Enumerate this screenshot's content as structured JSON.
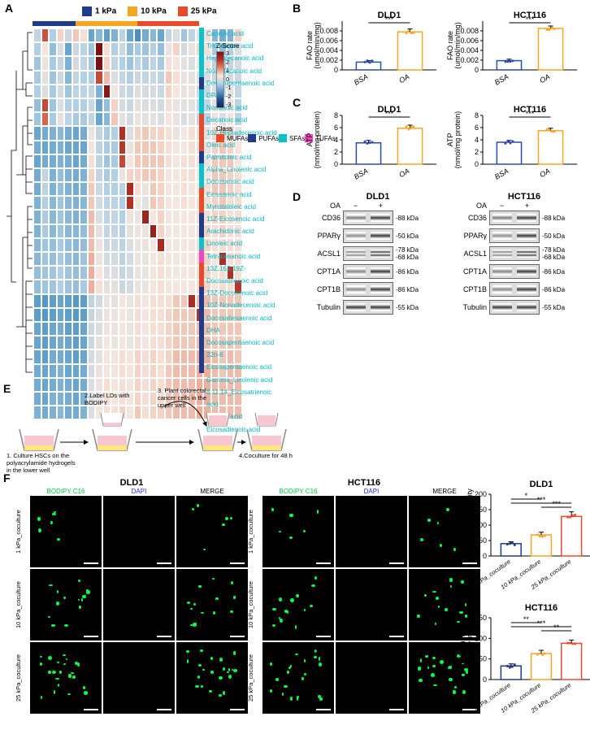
{
  "colors": {
    "kpa1": "#1f3b8b",
    "kpa10": "#f6a623",
    "kpa25": "#e84b2c",
    "mufa": "#e84b2c",
    "pufa": "#1f3b8b",
    "sfa": "#05c4cc",
    "tufa": "#f244c0",
    "bsa_bar": "#ffffff",
    "bsa_stroke": "#2b4db0",
    "oa_bar": "#ffffff",
    "oa_stroke": "#f6a623",
    "bodipy": "#00c83c",
    "dapi": "#1a2cff"
  },
  "stiffness_legend": [
    {
      "label": "1 kPa",
      "color": "#1f3b8b"
    },
    {
      "label": "10 kPa",
      "color": "#f6a623"
    },
    {
      "label": "25 kPa",
      "color": "#e84b2c"
    }
  ],
  "heatmap": {
    "n_cols": 27,
    "col_groups": [
      {
        "n": 7,
        "color": "#1f3b8b"
      },
      {
        "n": 10,
        "color": "#f6a623"
      },
      {
        "n": 10,
        "color": "#e84b2c"
      }
    ],
    "row_labels": [
      "Caprylic acid",
      "Tricosanoic acid",
      "Heptadecanoic acid",
      "Nonadecanoic acid",
      "Docosapentaenoic acid DPA",
      "Nonanoic acid",
      "Decanoic acid",
      "10Z-Heptadecenoic acid",
      "Oleic acid",
      "Palmitoleic acid",
      "Alpha_Linolenic acid",
      "Docosanoic acid",
      "Eicosanoic acid",
      "Myristaloleic acid",
      "11Z-Eicosenoic acid",
      "Arachidonic acid",
      "Linoleic acid",
      "Tetracosanoic acid",
      "13Z,16Z,19Z-Docosatrienoic acid",
      "13Z-Docosenoic acid",
      "10Z-Nonadecenoic acid",
      "Docosahexaenoic acid DHA",
      "Docosapentaenoic acid 22n-6",
      "Eicosapentaenoic acid",
      "Gamma_Linolenic acid",
      "8,11,14_Eicosatrienoic acid",
      "Adrenic acid",
      "Eicosadienoic acid"
    ],
    "row_class": [
      "SFAs",
      "SFAs",
      "SFAs",
      "SFAs",
      "PUFAs",
      "SFAs",
      "SFAs",
      "MUFAs",
      "MUFAs",
      "MUFAs",
      "PUFAs",
      "SFAs",
      "SFAs",
      "MUFAs",
      "MUFAs",
      "PUFAs",
      "PUFAs",
      "SFAs",
      "TUFAs",
      "MUFAs",
      "MUFAs",
      "PUFAs",
      "PUFAs",
      "PUFAs",
      "PUFAs",
      "PUFAs",
      "PUFAs",
      "PUFAs"
    ],
    "class_colors": {
      "MUFAs": "#e84b2c",
      "PUFAs": "#1f3b8b",
      "SFAs": "#05c4cc",
      "TUFAs": "#f244c0"
    },
    "zscore_range": [
      -3,
      -2,
      -1,
      0,
      1,
      2,
      3
    ],
    "z_palette": [
      "#0a2a5e",
      "#1f4e8c",
      "#5799c7",
      "#b0cfe4",
      "#f6e7de",
      "#e68266",
      "#b33426",
      "#7b1113"
    ],
    "values": [
      [
        -0.2,
        1.8,
        -0.4,
        0.6,
        -0.1,
        0.7,
        0.5,
        -1.1,
        -0.8,
        -1.2,
        -0.9,
        -0.3,
        -1.1,
        -1.4,
        -1.0,
        -0.8,
        -1.1,
        -0.2,
        0.1,
        -0.6,
        -0.3,
        0.3,
        0.5,
        -0.8,
        -1.0,
        -0.9,
        0.6
      ],
      [
        -0.4,
        0.4,
        -0.7,
        0.1,
        -1.1,
        -0.1,
        -0.3,
        -0.6,
        3.1,
        0.5,
        -0.4,
        -0.1,
        -0.7,
        -0.5,
        -0.6,
        -0.4,
        -0.7,
        0.3,
        0.6,
        0.0,
        0.3,
        0.6,
        0.5,
        -0.5,
        -0.7,
        -0.4,
        0.1
      ],
      [
        -0.6,
        0.3,
        -0.5,
        -0.2,
        -0.9,
        0.0,
        -0.2,
        -0.5,
        3.0,
        0.6,
        -0.2,
        -0.4,
        -0.6,
        -0.3,
        -0.5,
        -0.3,
        -0.5,
        0.5,
        0.4,
        0.2,
        0.1,
        0.4,
        0.3,
        -0.3,
        -0.5,
        -0.2,
        0.0
      ],
      [
        -0.5,
        0.2,
        -0.6,
        -0.1,
        -0.8,
        -0.2,
        -0.4,
        -0.4,
        1.9,
        0.8,
        0.1,
        -0.2,
        -0.4,
        -0.1,
        -0.2,
        -0.1,
        -0.3,
        0.7,
        0.5,
        0.3,
        0.2,
        0.2,
        0.1,
        -0.1,
        -0.3,
        0.0,
        -0.1
      ],
      [
        -0.4,
        0.1,
        -0.5,
        0.0,
        -0.6,
        -0.3,
        -0.3,
        -0.2,
        -0.9,
        2.8,
        0.4,
        -0.1,
        -0.2,
        0.1,
        0.0,
        0.0,
        -0.1,
        0.6,
        0.4,
        0.3,
        0.3,
        0.0,
        -0.1,
        0.1,
        -0.1,
        0.2,
        -0.2
      ],
      [
        -0.7,
        1.9,
        -0.6,
        0.1,
        -0.4,
        -0.4,
        -0.4,
        -0.1,
        -1.1,
        -0.7,
        0.6,
        0.0,
        -0.1,
        0.2,
        0.1,
        0.1,
        0.0,
        0.5,
        0.3,
        0.2,
        0.2,
        -0.1,
        -0.2,
        0.2,
        0.0,
        0.3,
        -0.3
      ],
      [
        -0.6,
        1.6,
        -0.5,
        0.2,
        -0.3,
        -0.5,
        -0.5,
        -0.2,
        -1.1,
        -0.8,
        0.7,
        0.2,
        0.0,
        0.3,
        0.2,
        0.2,
        0.1,
        0.4,
        0.3,
        0.1,
        0.2,
        -0.2,
        -0.3,
        0.3,
        0.1,
        0.4,
        -0.3
      ],
      [
        -1.1,
        -1.0,
        -0.9,
        -0.8,
        -1.0,
        -1.1,
        -1.0,
        0.3,
        -0.2,
        -0.5,
        -0.4,
        2.2,
        0.1,
        0.6,
        0.7,
        0.6,
        0.6,
        0.5,
        0.3,
        0.4,
        0.5,
        0.2,
        0.2,
        0.6,
        0.7,
        0.6,
        0.3
      ],
      [
        -1.0,
        -1.1,
        -1.0,
        -0.9,
        -1.1,
        -1.1,
        -1.1,
        0.4,
        -0.3,
        -0.5,
        -0.5,
        2.1,
        0.3,
        0.7,
        0.7,
        0.7,
        0.6,
        0.5,
        0.4,
        0.4,
        0.5,
        0.3,
        0.3,
        0.6,
        0.7,
        0.6,
        0.4
      ],
      [
        -1.1,
        -1.0,
        -1.0,
        -0.9,
        -1.0,
        -1.1,
        -1.0,
        0.5,
        -0.3,
        -0.6,
        -0.5,
        1.9,
        0.4,
        0.7,
        0.7,
        0.7,
        0.7,
        0.5,
        0.4,
        0.5,
        0.5,
        0.3,
        0.3,
        0.7,
        0.7,
        0.7,
        0.4
      ],
      [
        -1.0,
        -0.2,
        -0.9,
        -0.7,
        -0.9,
        -1.0,
        -0.9,
        0.6,
        -0.2,
        -0.5,
        -0.4,
        0.3,
        0.6,
        0.6,
        0.7,
        0.7,
        0.6,
        0.4,
        0.4,
        0.5,
        0.5,
        0.4,
        0.4,
        0.7,
        0.7,
        0.6,
        0.5
      ],
      [
        -1.0,
        -0.3,
        -0.9,
        -0.7,
        -0.9,
        -1.0,
        -0.9,
        0.7,
        -0.1,
        -0.4,
        -0.4,
        -0.3,
        2.3,
        0.5,
        0.3,
        0.7,
        0.6,
        0.4,
        0.4,
        0.5,
        0.4,
        0.4,
        0.5,
        0.7,
        0.7,
        0.6,
        0.5
      ],
      [
        -0.9,
        -0.4,
        -0.8,
        -0.6,
        -0.8,
        -0.9,
        -0.8,
        0.7,
        0.0,
        -0.3,
        -0.3,
        -0.4,
        2.2,
        0.4,
        0.2,
        0.7,
        0.6,
        0.4,
        0.4,
        0.5,
        0.4,
        0.5,
        0.5,
        0.6,
        0.7,
        0.5,
        0.5
      ],
      [
        -0.9,
        -0.5,
        -0.8,
        -0.6,
        -0.8,
        -0.9,
        -0.8,
        0.8,
        0.1,
        -0.3,
        -0.2,
        -0.4,
        0.3,
        0.3,
        2.5,
        0.4,
        0.6,
        0.4,
        0.4,
        0.4,
        0.4,
        0.5,
        0.5,
        0.6,
        0.6,
        0.5,
        0.5
      ],
      [
        -0.9,
        -0.5,
        -0.8,
        -0.6,
        -0.8,
        -0.8,
        -0.7,
        0.8,
        0.2,
        -0.2,
        -0.2,
        -0.4,
        0.2,
        0.3,
        0.3,
        2.6,
        0.6,
        0.4,
        0.4,
        0.4,
        0.4,
        0.5,
        0.6,
        0.5,
        0.6,
        0.5,
        0.5
      ],
      [
        -0.8,
        -0.6,
        -0.7,
        -0.5,
        -0.7,
        -0.8,
        -0.7,
        0.8,
        0.3,
        -0.1,
        -0.1,
        -0.3,
        0.1,
        0.3,
        0.3,
        0.4,
        2.4,
        0.4,
        0.4,
        0.4,
        0.4,
        0.5,
        0.6,
        0.5,
        0.5,
        0.5,
        0.5
      ],
      [
        -0.8,
        -0.6,
        -0.7,
        -0.5,
        -0.7,
        -0.8,
        -0.6,
        0.9,
        0.3,
        0.0,
        0.0,
        -0.3,
        0.0,
        0.3,
        0.3,
        0.4,
        0.5,
        0.4,
        0.4,
        0.4,
        0.4,
        0.5,
        0.6,
        0.4,
        2.3,
        0.5,
        0.5
      ],
      [
        -0.7,
        -0.6,
        -0.6,
        -0.4,
        -0.6,
        -0.7,
        -0.6,
        0.9,
        0.4,
        0.1,
        0.1,
        -0.2,
        0.0,
        0.3,
        0.3,
        0.4,
        0.5,
        0.4,
        0.4,
        0.4,
        0.4,
        0.5,
        0.6,
        0.4,
        0.5,
        2.2,
        0.5
      ],
      [
        -0.7,
        -0.6,
        -0.6,
        -0.4,
        -0.6,
        -0.7,
        -0.5,
        0.9,
        0.5,
        0.2,
        0.2,
        -0.1,
        0.0,
        0.3,
        0.3,
        0.4,
        0.5,
        0.4,
        0.4,
        0.4,
        0.4,
        0.5,
        0.6,
        0.4,
        0.5,
        0.5,
        2.1
      ],
      [
        -1.2,
        -1.3,
        -1.2,
        -1.1,
        -1.2,
        -1.3,
        -1.2,
        -0.3,
        0.0,
        0.3,
        0.2,
        0.4,
        0.3,
        0.5,
        0.4,
        0.5,
        0.5,
        0.5,
        0.7,
        0.7,
        2.3,
        0.8,
        0.8,
        0.7,
        0.7,
        0.7,
        0.7
      ],
      [
        -1.2,
        -1.3,
        -1.2,
        -1.1,
        -1.2,
        -1.3,
        -1.2,
        -0.2,
        0.1,
        0.3,
        0.3,
        0.4,
        0.3,
        0.5,
        0.4,
        0.5,
        0.5,
        0.6,
        0.7,
        0.7,
        0.7,
        2.2,
        0.8,
        0.7,
        0.7,
        0.7,
        0.7
      ],
      [
        -1.1,
        -1.2,
        -1.1,
        -1.0,
        -1.2,
        -1.2,
        -1.1,
        -0.1,
        0.1,
        0.3,
        0.3,
        0.4,
        0.3,
        0.5,
        0.4,
        0.5,
        0.5,
        0.6,
        0.7,
        0.7,
        0.7,
        0.8,
        0.8,
        0.7,
        0.7,
        0.7,
        0.7
      ],
      [
        -1.1,
        -1.2,
        -1.1,
        -1.0,
        -1.1,
        -1.2,
        -1.1,
        -0.1,
        0.2,
        0.4,
        0.3,
        0.4,
        0.3,
        0.5,
        0.4,
        0.5,
        0.5,
        0.6,
        0.7,
        0.7,
        0.7,
        0.8,
        0.8,
        0.7,
        0.7,
        0.7,
        0.7
      ],
      [
        -1.1,
        -1.2,
        -1.0,
        -1.0,
        -1.1,
        -1.2,
        -1.1,
        0.0,
        0.2,
        0.4,
        0.4,
        0.5,
        0.4,
        0.6,
        0.5,
        0.6,
        0.5,
        0.6,
        0.8,
        0.8,
        0.8,
        0.9,
        0.9,
        0.8,
        0.7,
        0.8,
        0.7
      ],
      [
        -1.0,
        -1.1,
        -1.0,
        -0.9,
        -1.1,
        -1.1,
        -1.0,
        0.0,
        0.3,
        0.4,
        0.4,
        0.5,
        0.4,
        0.6,
        0.5,
        0.6,
        0.5,
        0.7,
        0.8,
        0.8,
        0.8,
        0.9,
        0.9,
        0.8,
        0.7,
        0.8,
        0.8
      ],
      [
        -1.0,
        -1.1,
        -1.0,
        -0.9,
        -1.0,
        -1.1,
        -1.0,
        0.1,
        0.3,
        0.5,
        0.4,
        0.5,
        0.4,
        0.6,
        0.5,
        0.6,
        0.5,
        0.7,
        0.8,
        0.8,
        0.8,
        0.9,
        0.9,
        0.8,
        0.8,
        0.8,
        0.8
      ],
      [
        -1.0,
        -1.1,
        -0.9,
        -0.9,
        -1.0,
        -1.1,
        -0.9,
        0.1,
        0.3,
        0.5,
        0.4,
        0.5,
        0.4,
        0.6,
        0.5,
        0.6,
        0.5,
        0.7,
        0.8,
        0.8,
        0.8,
        0.9,
        0.9,
        0.8,
        0.8,
        0.8,
        0.8
      ],
      [
        -0.9,
        -1.0,
        -0.9,
        -0.8,
        -1.0,
        -1.0,
        -0.9,
        0.1,
        0.4,
        0.5,
        0.5,
        0.6,
        0.4,
        0.7,
        0.5,
        0.6,
        0.6,
        0.7,
        0.8,
        0.8,
        0.8,
        0.9,
        0.9,
        0.8,
        0.8,
        0.8,
        0.8
      ]
    ]
  },
  "panel_b": {
    "title_left": "DLD1",
    "title_right": "HCT116",
    "ylab": "FAO rate\n(umol/min/mg)",
    "ymax": 0.01,
    "yticks": [
      0,
      0.002,
      0.004,
      0.006,
      0.008
    ],
    "groups": [
      "BSA",
      "OA"
    ],
    "dld1": {
      "bsa": 0.0016,
      "oa": 0.0078,
      "bsa_err": 0.0003,
      "oa_err": 0.0006,
      "sig": "***"
    },
    "hct": {
      "bsa": 0.0019,
      "oa": 0.0085,
      "bsa_err": 0.0003,
      "oa_err": 0.0005,
      "sig": "***"
    }
  },
  "panel_c": {
    "title_left": "DLD1",
    "title_right": "HCT116",
    "ylab": "ATP\n(nmol/mg protein)",
    "ymax": 8,
    "yticks": [
      0,
      2,
      4,
      6,
      8
    ],
    "groups": [
      "BSA",
      "OA"
    ],
    "dld1": {
      "bsa": 3.5,
      "oa": 5.9,
      "bsa_err": 0.4,
      "oa_err": 0.5,
      "sig": "***"
    },
    "hct": {
      "bsa": 3.6,
      "oa": 5.5,
      "bsa_err": 0.3,
      "oa_err": 0.4,
      "sig": "***"
    }
  },
  "panel_d": {
    "label": "D",
    "cells": [
      "DLD1",
      "HCT116"
    ],
    "oa_header": "OA",
    "lanes": [
      "−",
      "+"
    ],
    "proteins": [
      {
        "name": "CD36",
        "kda": "88 kDa",
        "intensity": [
          0.5,
          1.0
        ]
      },
      {
        "name": "PPARγ",
        "kda": "50 kDa",
        "intensity": [
          0.35,
          1.0
        ]
      },
      {
        "name": "ACSL1",
        "kda": "78 kDa\n68 kDa",
        "intensity": [
          0.5,
          1.0
        ],
        "double": true
      },
      {
        "name": "CPT1A",
        "kda": "86 kDa",
        "intensity": [
          0.45,
          1.0
        ]
      },
      {
        "name": "CPT1B",
        "kda": "86 kDa",
        "intensity": [
          0.4,
          1.0
        ]
      },
      {
        "name": "Tubulin",
        "kda": "55 kDa",
        "intensity": [
          1.0,
          1.0
        ]
      }
    ]
  },
  "panel_e": {
    "label": "E",
    "steps": [
      "1. Culture HSCs on the\npolyacrylamide hydrogels\nin the lower well",
      "2.Label LDs with\nBODIPY",
      "3. Plant colorectal\ncancer cells in the\nupper well",
      "4.Coculture for 48 h"
    ]
  },
  "panel_f": {
    "channels": [
      "BODIPY C16",
      "DAPI",
      "MERGE"
    ],
    "channel_colors": [
      "#00c83c",
      "#1a2cff",
      "#000000"
    ],
    "cells": [
      "DLD1",
      "HCT116"
    ],
    "rows": [
      "1 kPa_coculture",
      "10 kPa_coculture",
      "25 kPa_coculture"
    ],
    "img_size": 88,
    "bar_ylab": "BODIPY uptake\nFluorescence intensity",
    "dld1": {
      "ymax": 200,
      "yticks": [
        0,
        50,
        100,
        150,
        200
      ],
      "values": [
        40,
        68,
        128
      ],
      "err": [
        6,
        9,
        15
      ],
      "sig": [
        [
          "1-10",
          "*"
        ],
        [
          "1-25",
          "***"
        ],
        [
          "10-25",
          "***"
        ]
      ]
    },
    "hct": {
      "ymax": 150,
      "yticks": [
        0,
        50,
        100,
        150
      ],
      "values": [
        33,
        63,
        88
      ],
      "err": [
        5,
        8,
        8
      ],
      "sig": [
        [
          "1-10",
          "**"
        ],
        [
          "1-25",
          "***"
        ],
        [
          "10-25",
          "**"
        ]
      ]
    }
  },
  "labels": {
    "A": "A",
    "B": "B",
    "C": "C",
    "D": "D",
    "E": "E",
    "F": "F"
  }
}
